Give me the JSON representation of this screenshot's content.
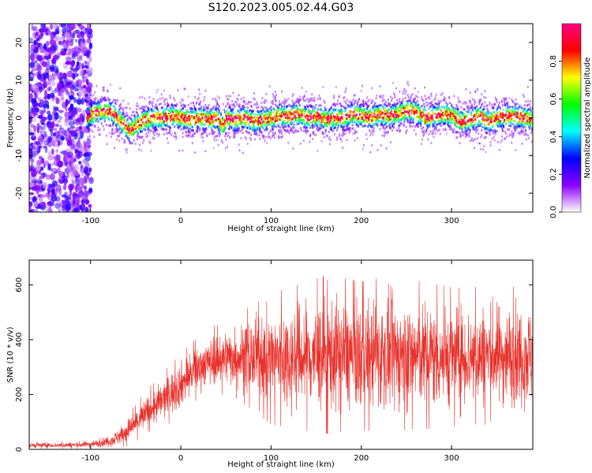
{
  "figure": {
    "title": "S120.2023.005.02.44.G03"
  },
  "chart_data": [
    {
      "type": "heatmap",
      "xlabel": "Height of straight line (km)",
      "ylabel": "Frequency (Hz)",
      "xlim": [
        -168,
        390
      ],
      "ylim": [
        -25,
        25
      ],
      "xticks": [
        -100,
        0,
        100,
        200,
        300
      ],
      "yticks": [
        -20,
        -10,
        0,
        10,
        20
      ],
      "colorbar": {
        "label": "Normalized spectral amplitude",
        "range": [
          0,
          1
        ],
        "ticks": [
          0.0,
          0.2,
          0.4,
          0.6,
          0.8
        ],
        "tick_labels": [
          "0.0",
          "0.2",
          "0.4",
          "0.6",
          "0.8"
        ],
        "colormap": [
          "#ffffff",
          "#8a00ff",
          "#0000ff",
          "#00ffff",
          "#00ff00",
          "#ffff00",
          "#ff0000",
          "#ff0080"
        ]
      },
      "noise_region_x": [
        -168,
        -105
      ],
      "ridge": {
        "x": [
          -105,
          -95,
          -85,
          -75,
          -65,
          -58,
          -50,
          -40,
          -30,
          -20,
          -10,
          0,
          10,
          20,
          30,
          40,
          45,
          50,
          60,
          70,
          80,
          90,
          100,
          110,
          120,
          130,
          140,
          150,
          160,
          170,
          180,
          190,
          200,
          210,
          220,
          230,
          240,
          250,
          260,
          270,
          280,
          290,
          300,
          310,
          320,
          330,
          340,
          350,
          360,
          370,
          380,
          390
        ],
        "freq": [
          0,
          1.5,
          2,
          1,
          -1.5,
          -3.5,
          -2,
          -0.5,
          0,
          0,
          0.5,
          0,
          -0.5,
          0,
          -0.5,
          0,
          -2.5,
          0,
          -0.5,
          0,
          -1,
          -0.5,
          0,
          0.5,
          0.5,
          1,
          0,
          0.5,
          -0.5,
          0,
          0,
          1,
          0.5,
          0,
          1,
          0.5,
          1,
          2,
          1.5,
          0,
          0.5,
          1,
          0.5,
          -1,
          -0.5,
          0.5,
          -1,
          0,
          0.5,
          0.5,
          0,
          -0.5
        ]
      }
    },
    {
      "type": "line",
      "xlabel": "Height of straight line (km)",
      "ylabel": "SNR (10 * v/v)",
      "xlim": [
        -168,
        390
      ],
      "ylim": [
        0,
        690
      ],
      "xticks": [
        -100,
        0,
        100,
        200,
        300
      ],
      "yticks": [
        0,
        200,
        400,
        600
      ],
      "line_color": "#e8302a",
      "series": [
        {
          "x": [
            -168,
            -140,
            -110,
            -90,
            -75,
            -65,
            -55,
            -45,
            -35,
            -25,
            -15,
            -5,
            5,
            15,
            25,
            35,
            45,
            60,
            80,
            100,
            120,
            140,
            160,
            180,
            200,
            220,
            240,
            260,
            280,
            300,
            320,
            340,
            360,
            380,
            390
          ],
          "mean": [
            15,
            15,
            17,
            22,
            35,
            55,
            80,
            110,
            140,
            165,
            195,
            220,
            255,
            285,
            310,
            325,
            335,
            340,
            335,
            330,
            335,
            340,
            345,
            345,
            340,
            345,
            340,
            345,
            340,
            335,
            340,
            345,
            340,
            345,
            340
          ],
          "spread": [
            8,
            8,
            9,
            12,
            20,
            30,
            40,
            50,
            55,
            60,
            65,
            70,
            70,
            70,
            70,
            75,
            85,
            95,
            120,
            150,
            160,
            170,
            180,
            175,
            170,
            175,
            170,
            170,
            165,
            160,
            155,
            160,
            155,
            160,
            160
          ]
        }
      ]
    }
  ]
}
